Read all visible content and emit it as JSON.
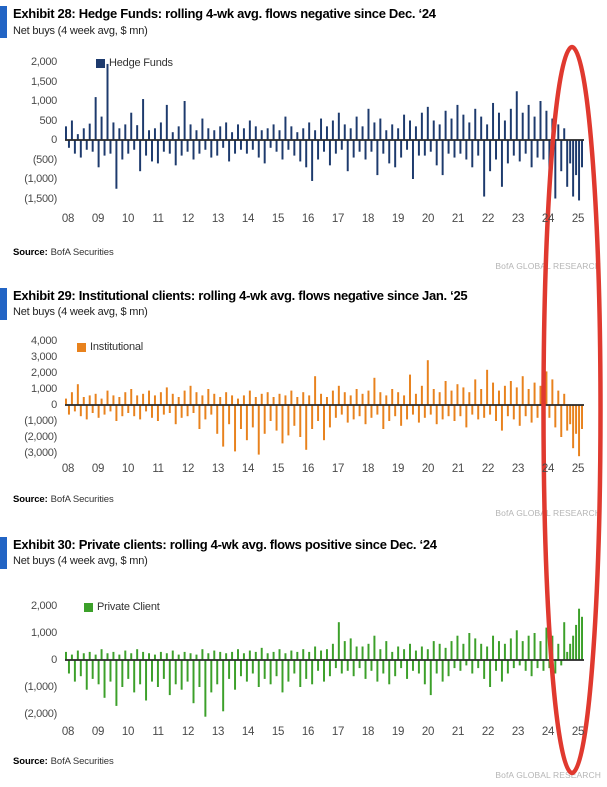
{
  "chart_data": [
    {
      "type": "bar",
      "title": "Exhibit 28: Hedge Funds: rolling 4-wk avg. flows negative since Dec. ‘24",
      "subtitle": "Net buys (4 week avg, $ mn)",
      "legend": "Hedge Funds",
      "color": "#1d3a6d",
      "x_labels": [
        "08",
        "09",
        "10",
        "11",
        "12",
        "13",
        "14",
        "15",
        "16",
        "17",
        "18",
        "19",
        "20",
        "21",
        "22",
        "23",
        "24",
        "25"
      ],
      "y_ticks": [
        "2,000",
        "1,500",
        "1,000",
        "500",
        "0",
        "(500)",
        "(1,000)",
        "(1,500)"
      ],
      "y_tick_values": [
        2000,
        1500,
        1000,
        500,
        0,
        -500,
        -1000,
        -1500
      ],
      "ylim": [
        -1750,
        2050
      ],
      "grid": false,
      "legend_position": "top-left-inside",
      "values": [
        350,
        -200,
        500,
        -350,
        150,
        -450,
        300,
        -250,
        420,
        -300,
        1100,
        -700,
        600,
        -400,
        1950,
        -350,
        450,
        -1250,
        300,
        -500,
        400,
        -350,
        700,
        -250,
        380,
        -800,
        1050,
        -400,
        250,
        -550,
        300,
        -600,
        450,
        -300,
        900,
        -350,
        200,
        -650,
        350,
        -400,
        1000,
        -300,
        400,
        -500,
        250,
        -350,
        550,
        -250,
        300,
        -450,
        250,
        -400,
        350,
        -200,
        450,
        -550,
        200,
        -350,
        400,
        -250,
        300,
        -350,
        500,
        -250,
        350,
        -450,
        250,
        -600,
        300,
        -200,
        400,
        -300,
        250,
        -500,
        600,
        -250,
        350,
        -400,
        200,
        -550,
        300,
        -700,
        450,
        -1050,
        250,
        -500,
        550,
        -300,
        350,
        -650,
        500,
        -350,
        700,
        -250,
        400,
        -800,
        300,
        -450,
        600,
        -300,
        350,
        -500,
        800,
        -300,
        450,
        -900,
        550,
        -350,
        250,
        -600,
        400,
        -700,
        300,
        -450,
        650,
        -250,
        500,
        -1000,
        350,
        -400,
        700,
        -400,
        850,
        -300,
        500,
        -650,
        400,
        -900,
        750,
        -350,
        550,
        -450,
        900,
        -350,
        650,
        -500,
        450,
        -700,
        800,
        -400,
        600,
        -1450,
        400,
        -800,
        950,
        -500,
        700,
        -1200,
        500,
        -600,
        800,
        -400,
        1250,
        -550,
        700,
        -350,
        900,
        -700,
        600,
        -450,
        1000,
        -500,
        750,
        -1100,
        550,
        -1500,
        400,
        -800,
        300,
        -1200,
        -600,
        -1450,
        -900,
        -1550,
        -700
      ],
      "source_label": "Source:",
      "source_value": "BofA Securities",
      "watermark": "BofA GLOBAL RESEARCH"
    },
    {
      "type": "bar",
      "title": "Exhibit 29: Institutional clients: rolling 4-wk avg. flows negative since Jan. ‘25",
      "subtitle": "Net buys (4 week avg, $ mn)",
      "legend": "Institutional",
      "color": "#e8821d",
      "x_labels": [
        "08",
        "09",
        "10",
        "11",
        "12",
        "13",
        "14",
        "15",
        "16",
        "17",
        "18",
        "19",
        "20",
        "21",
        "22",
        "23",
        "24",
        "25"
      ],
      "y_ticks": [
        "4,000",
        "3,000",
        "2,000",
        "1,000",
        "0",
        "(1,000)",
        "(2,000)",
        "(3,000)"
      ],
      "y_tick_values": [
        4000,
        3000,
        2000,
        1000,
        0,
        -1000,
        -2000,
        -3000
      ],
      "ylim": [
        -3400,
        4100
      ],
      "grid": false,
      "legend_position": "top-left-inside",
      "values": [
        400,
        -600,
        800,
        -400,
        1300,
        -700,
        500,
        -900,
        600,
        -500,
        700,
        -800,
        400,
        -600,
        900,
        -400,
        600,
        -1000,
        500,
        -700,
        800,
        -500,
        1000,
        -700,
        600,
        -900,
        700,
        -400,
        900,
        -800,
        600,
        -1000,
        800,
        -600,
        1100,
        -500,
        700,
        -1200,
        500,
        -800,
        900,
        -700,
        1200,
        -500,
        800,
        -1500,
        600,
        -900,
        1000,
        -600,
        700,
        -1800,
        500,
        -2600,
        800,
        -1200,
        600,
        -2900,
        400,
        -1500,
        600,
        -2200,
        900,
        -1400,
        500,
        -3100,
        700,
        -1800,
        800,
        -1000,
        500,
        -1600,
        700,
        -2400,
        600,
        -1900,
        900,
        -1300,
        500,
        -2000,
        800,
        -2800,
        600,
        -1500,
        1800,
        -1000,
        700,
        -2200,
        500,
        -1400,
        900,
        -800,
        1200,
        -600,
        800,
        -1100,
        600,
        -900,
        1000,
        -700,
        700,
        -1200,
        900,
        -800,
        1700,
        -600,
        800,
        -1500,
        600,
        -1000,
        1000,
        -700,
        800,
        -1300,
        600,
        -900,
        1900,
        -600,
        700,
        -1100,
        1200,
        -800,
        2800,
        -600,
        1000,
        -1200,
        800,
        -900,
        1500,
        -700,
        900,
        -1000,
        1300,
        -700,
        1100,
        -1400,
        800,
        -600,
        1600,
        -900,
        1000,
        -800,
        2200,
        -600,
        1400,
        -1000,
        900,
        -1600,
        1200,
        -700,
        1500,
        -900,
        1100,
        -1300,
        1800,
        -700,
        1000,
        -1100,
        1400,
        -800,
        1200,
        -1000,
        2100,
        -800,
        1600,
        -1400,
        900,
        -2000,
        700,
        -1600,
        -1200,
        -2700,
        -1800,
        -3200,
        -1500
      ],
      "source_label": "Source:",
      "source_value": "BofA Securities",
      "watermark": "BofA GLOBAL RESEARCH"
    },
    {
      "type": "bar",
      "title": "Exhibit 30: Private clients: rolling 4-wk avg. flows positive since Dec. ‘24",
      "subtitle": "Net buys (4 week avg, $ mn)",
      "legend": "Private Client",
      "color": "#3ca02a",
      "x_labels": [
        "08",
        "09",
        "10",
        "11",
        "12",
        "13",
        "14",
        "15",
        "16",
        "17",
        "18",
        "19",
        "20",
        "21",
        "22",
        "23",
        "24",
        "25"
      ],
      "y_ticks": [
        "2,000",
        "1,000",
        "0",
        "(1,000)",
        "(2,000)"
      ],
      "y_tick_values": [
        2000,
        1000,
        0,
        -1000,
        -2000
      ],
      "ylim": [
        -2350,
        2250
      ],
      "grid": false,
      "legend_position": "top-left-inside",
      "values": [
        300,
        -500,
        200,
        -800,
        350,
        -600,
        250,
        -1100,
        300,
        -700,
        200,
        -900,
        400,
        -1400,
        250,
        -800,
        300,
        -1700,
        200,
        -1000,
        350,
        -700,
        250,
        -1200,
        400,
        -900,
        300,
        -1500,
        250,
        -800,
        200,
        -1000,
        300,
        -700,
        250,
        -1300,
        350,
        -900,
        200,
        -1100,
        300,
        -800,
        250,
        -1600,
        200,
        -1000,
        400,
        -2100,
        250,
        -1200,
        350,
        -900,
        300,
        -1900,
        250,
        -700,
        300,
        -1100,
        400,
        -600,
        250,
        -800,
        350,
        -500,
        300,
        -1000,
        450,
        -700,
        250,
        -900,
        300,
        -600,
        400,
        -1200,
        250,
        -800,
        350,
        -500,
        300,
        -1000,
        400,
        -700,
        300,
        -900,
        500,
        -400,
        350,
        -800,
        400,
        -600,
        600,
        -300,
        1400,
        -500,
        700,
        -400,
        800,
        -600,
        500,
        -300,
        500,
        -700,
        600,
        -400,
        900,
        -800,
        400,
        -500,
        700,
        -900,
        300,
        -600,
        500,
        -300,
        400,
        -700,
        600,
        -400,
        350,
        -500,
        500,
        -900,
        400,
        -1300,
        700,
        -500,
        600,
        -800,
        450,
        -600,
        700,
        -300,
        900,
        -400,
        600,
        -200,
        1000,
        -500,
        800,
        -300,
        600,
        -700,
        500,
        -1000,
        900,
        -400,
        700,
        -800,
        600,
        -500,
        800,
        -300,
        1100,
        -200,
        700,
        -400,
        900,
        -600,
        1000,
        -300,
        700,
        -400,
        1200,
        -300,
        900,
        -500,
        600,
        -200,
        1400,
        300,
        600,
        900,
        1300,
        1900,
        1600
      ],
      "source_label": "Source:",
      "source_value": "BofA Securities",
      "watermark": "BofA GLOBAL RESEARCH"
    }
  ],
  "annotations": {
    "highlight_ellipse": {
      "color": "#e0392f",
      "highlights": "most recent period (2024-25)"
    }
  }
}
